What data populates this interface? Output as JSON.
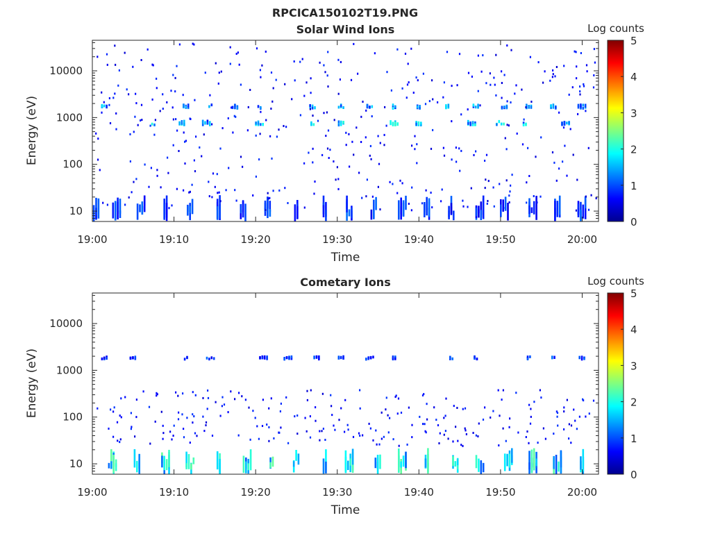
{
  "figure_title": "RPCICA150102T19.PNG",
  "chart_data": [
    {
      "type": "heatmap",
      "title": "Solar Wind Ions",
      "xlabel": "Time",
      "ylabel": "Energy (eV)",
      "x_ticks": [
        "19:00",
        "19:10",
        "19:20",
        "19:30",
        "19:40",
        "19:50",
        "20:00"
      ],
      "y_scale": "log",
      "y_ticks": [
        10,
        100,
        1000,
        10000
      ],
      "y_tick_labels": [
        "10",
        "100",
        "1000",
        "10000"
      ],
      "ylim": [
        6,
        45000
      ],
      "xlim_minutes": [
        0,
        62
      ],
      "colorbar": {
        "label": "Log counts",
        "min": 0,
        "max": 5,
        "ticks": [
          "0",
          "1",
          "2",
          "3",
          "4",
          "5"
        ],
        "colormap": "jet"
      },
      "bands": [
        {
          "energy_range": [
            6,
            22
          ],
          "minutes": [
            0.5,
            3,
            6,
            9,
            12,
            15.5,
            18.5,
            21.5,
            25,
            28.5,
            31.5,
            34.5,
            38,
            41,
            44,
            47.5,
            50.5,
            54,
            57,
            60
          ],
          "level": 1.0
        },
        {
          "energy_range": [
            650,
            900
          ],
          "minutes": [
            7.5,
            11,
            14,
            20.5,
            27,
            30.5,
            37,
            40,
            46.5,
            50,
            53,
            58
          ],
          "level": 1.8
        },
        {
          "energy_range": [
            1500,
            2000
          ],
          "minutes": [
            1.5,
            11.5,
            14.5,
            17.5,
            20.5,
            27,
            30.5,
            34,
            37,
            40,
            43.5,
            47,
            50.5,
            53.5,
            56.5,
            60
          ],
          "level": 1.5
        }
      ],
      "max_log_counts_observed": 2.2
    },
    {
      "type": "heatmap",
      "title": "Cometary Ions",
      "xlabel": "Time",
      "ylabel": "Energy (eV)",
      "x_ticks": [
        "19:00",
        "19:10",
        "19:20",
        "19:30",
        "19:40",
        "19:50",
        "20:00"
      ],
      "y_scale": "log",
      "y_ticks": [
        10,
        100,
        1000,
        10000
      ],
      "y_tick_labels": [
        "10",
        "100",
        "1000",
        "10000"
      ],
      "ylim": [
        6,
        45000
      ],
      "xlim_minutes": [
        0,
        62
      ],
      "colorbar": {
        "label": "Log counts",
        "min": 0,
        "max": 5,
        "ticks": [
          "0",
          "1",
          "2",
          "3",
          "4",
          "5"
        ],
        "colormap": "jet"
      },
      "bands": [
        {
          "energy_range": [
            6,
            22
          ],
          "minutes": [
            2.5,
            5.5,
            9,
            12,
            15.5,
            19,
            22,
            25,
            28.5,
            31.5,
            35,
            38,
            41,
            44.5,
            47.5,
            51,
            54,
            57,
            60
          ],
          "level": 2.0
        },
        {
          "energy_range": [
            1700,
            2100
          ],
          "minutes": [
            1.5,
            5,
            11.5,
            14.5,
            21,
            24,
            27.5,
            30.5,
            34,
            37,
            44,
            47,
            53.5,
            56.5,
            60
          ],
          "level": 1.0
        }
      ],
      "max_log_counts_observed": 2.6
    }
  ]
}
